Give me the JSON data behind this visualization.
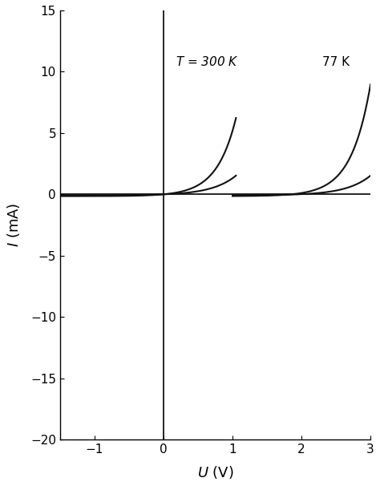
{
  "xlim": [
    -1.5,
    3.0
  ],
  "ylim": [
    -20,
    15
  ],
  "yticks": [
    -20,
    -15,
    -10,
    -5,
    0,
    5,
    10,
    15
  ],
  "xticks": [
    -1,
    0,
    1,
    2,
    3
  ],
  "T300_label": "$T$ = 300 K",
  "T77_label": "77 K",
  "line_color": "#111111",
  "bg_color": "#ffffff",
  "figsize": [
    4.74,
    6.06
  ],
  "dpi": 100
}
